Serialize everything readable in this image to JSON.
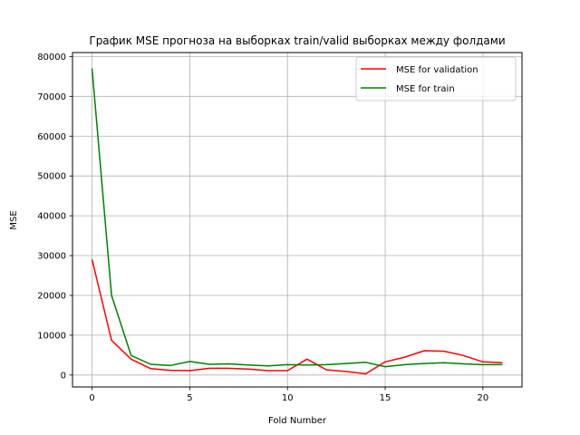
{
  "chart_data": {
    "type": "line",
    "title": "График MSE прогноза на выборках train/valid выборках между фолдами",
    "xlabel": "Fold Number",
    "ylabel": "MSE",
    "xlim": [
      -1,
      22
    ],
    "ylim": [
      -3000,
      81000
    ],
    "xticks": [
      0,
      5,
      10,
      15,
      20
    ],
    "yticks": [
      0,
      10000,
      20000,
      30000,
      40000,
      50000,
      60000,
      70000,
      80000
    ],
    "grid": true,
    "legend_position": "upper right",
    "x": [
      0,
      1,
      2,
      3,
      4,
      5,
      6,
      7,
      8,
      9,
      10,
      11,
      12,
      13,
      14,
      15,
      16,
      17,
      18,
      19,
      20,
      21
    ],
    "series": [
      {
        "name": "MSE for validation",
        "color": "#ff0000",
        "values": [
          29000,
          8700,
          4000,
          1600,
          1200,
          1100,
          1700,
          1700,
          1500,
          1100,
          1100,
          4000,
          1300,
          900,
          300,
          3300,
          4500,
          6100,
          6000,
          4900,
          3300,
          3100
        ]
      },
      {
        "name": "MSE for train",
        "color": "#008000",
        "values": [
          77000,
          20000,
          4900,
          2700,
          2400,
          3400,
          2700,
          2800,
          2500,
          2300,
          2600,
          2500,
          2600,
          2900,
          3200,
          2100,
          2600,
          2900,
          3100,
          2800,
          2600,
          2600
        ]
      }
    ]
  }
}
